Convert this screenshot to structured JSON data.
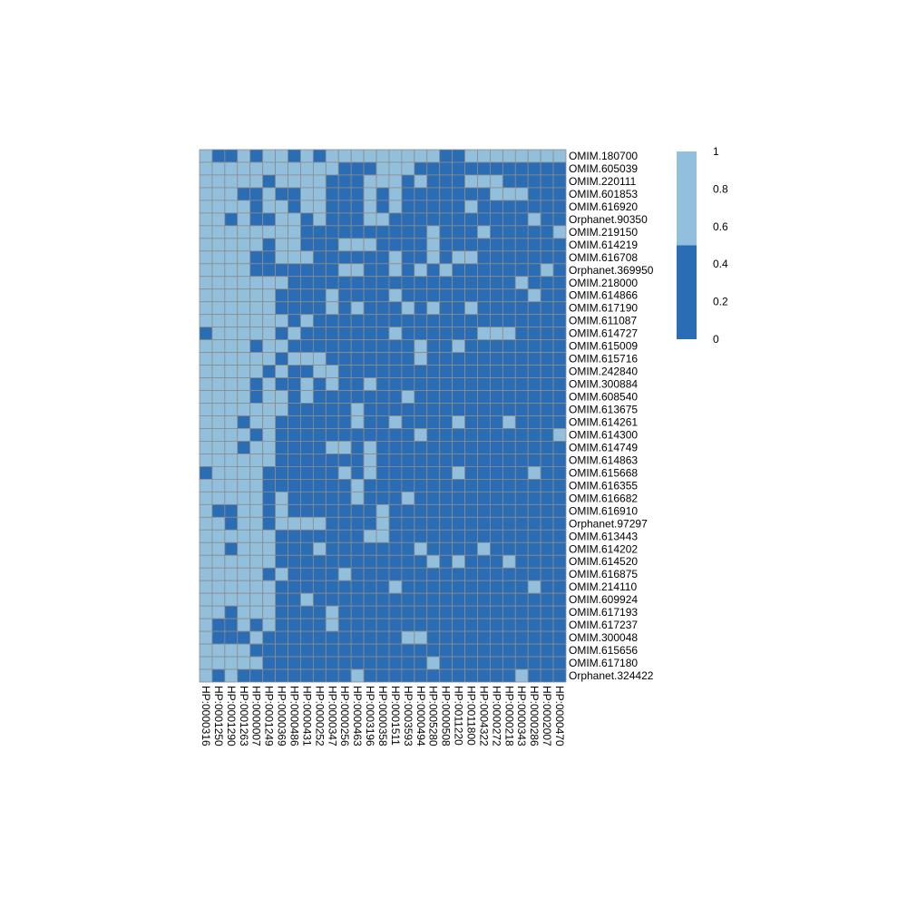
{
  "chart_data": {
    "type": "heatmap",
    "title": "",
    "xlabel": "",
    "ylabel": "",
    "grid": true,
    "legend_position": "right",
    "colors": {
      "high": "#92bfdb",
      "low": "#2a6db5",
      "border": "#8c8c8c"
    },
    "value_range": [
      0,
      1
    ],
    "colorbar": {
      "ticks": [
        {
          "value": 1,
          "label": "1"
        },
        {
          "value": 0.8,
          "label": "0.8"
        },
        {
          "value": 0.6,
          "label": "0.6"
        },
        {
          "value": 0.4,
          "label": "0.4"
        },
        {
          "value": 0.2,
          "label": "0.2"
        },
        {
          "value": 0,
          "label": "0"
        }
      ],
      "split": 0.5
    },
    "columns": [
      "HP:0000316",
      "HP:0001250",
      "HP:0001290",
      "HP:0001263",
      "HP:0000007",
      "HP:0001249",
      "HP:0000369",
      "HP:0000486",
      "HP:0000431",
      "HP:0000252",
      "HP:0000347",
      "HP:0000256",
      "HP:0000463",
      "HP:0003196",
      "HP:0000358",
      "HP:0001511",
      "HP:0003593",
      "HP:0000494",
      "HP:0005280",
      "HP:0000508",
      "HP:0011220",
      "HP:0011800",
      "HP:0004322",
      "HP:0000272",
      "HP:0000218",
      "HP:0000343",
      "HP:0000286",
      "HP:0002007",
      "HP:0000470"
    ],
    "rows": [
      "OMIM.180700",
      "OMIM.605039",
      "OMIM.220111",
      "OMIM.601853",
      "OMIM.616920",
      "Orphanet.90350",
      "OMIM.219150",
      "OMIM.614219",
      "OMIM.616708",
      "Orphanet.369950",
      "OMIM.218000",
      "OMIM.614866",
      "OMIM.617190",
      "OMIM.611087",
      "OMIM.614727",
      "OMIM.615009",
      "OMIM.615716",
      "OMIM.242840",
      "OMIM.300884",
      "OMIM.608540",
      "OMIM.613675",
      "OMIM.614261",
      "OMIM.614300",
      "OMIM.614749",
      "OMIM.614863",
      "OMIM.615668",
      "OMIM.616355",
      "OMIM.616682",
      "OMIM.616910",
      "Orphanet.97297",
      "OMIM.613443",
      "OMIM.614202",
      "OMIM.614520",
      "OMIM.616875",
      "OMIM.214110",
      "OMIM.609924",
      "OMIM.617193",
      "OMIM.617237",
      "OMIM.300048",
      "OMIM.615656",
      "OMIM.617180",
      "Orphanet.324422"
    ],
    "values": [
      [
        1,
        0,
        0,
        1,
        0,
        1,
        1,
        0,
        1,
        0,
        1,
        1,
        1,
        1,
        1,
        1,
        1,
        1,
        1,
        0,
        0,
        1,
        1,
        1,
        1,
        1,
        1,
        1,
        1
      ],
      [
        1,
        1,
        1,
        1,
        1,
        1,
        1,
        1,
        1,
        1,
        1,
        0,
        0,
        0,
        1,
        1,
        1,
        0,
        0,
        0,
        0,
        0,
        0,
        0,
        0,
        0,
        0,
        0,
        0
      ],
      [
        1,
        1,
        1,
        1,
        1,
        0,
        1,
        1,
        1,
        1,
        0,
        0,
        0,
        1,
        1,
        1,
        0,
        1,
        0,
        0,
        0,
        1,
        1,
        1,
        0,
        0,
        0,
        0,
        0
      ],
      [
        1,
        1,
        1,
        0,
        0,
        1,
        0,
        0,
        1,
        1,
        0,
        0,
        0,
        1,
        0,
        1,
        0,
        0,
        0,
        0,
        0,
        0,
        0,
        1,
        1,
        1,
        0,
        0,
        0
      ],
      [
        1,
        1,
        1,
        1,
        0,
        1,
        1,
        0,
        1,
        1,
        0,
        0,
        0,
        1,
        0,
        1,
        0,
        0,
        0,
        0,
        0,
        1,
        0,
        0,
        0,
        0,
        0,
        0,
        0
      ],
      [
        1,
        1,
        0,
        1,
        0,
        0,
        1,
        1,
        0,
        1,
        0,
        0,
        0,
        1,
        1,
        0,
        0,
        0,
        0,
        0,
        0,
        0,
        0,
        0,
        0,
        0,
        1,
        0,
        0
      ],
      [
        1,
        1,
        1,
        1,
        1,
        1,
        1,
        1,
        0,
        0,
        0,
        0,
        0,
        0,
        0,
        0,
        0,
        0,
        1,
        0,
        0,
        0,
        1,
        0,
        0,
        0,
        0,
        0,
        1
      ],
      [
        1,
        1,
        1,
        1,
        1,
        0,
        1,
        1,
        0,
        0,
        0,
        1,
        1,
        1,
        0,
        0,
        0,
        0,
        1,
        0,
        0,
        0,
        0,
        0,
        0,
        0,
        0,
        0,
        0
      ],
      [
        1,
        1,
        1,
        1,
        0,
        0,
        1,
        1,
        1,
        0,
        0,
        0,
        0,
        0,
        0,
        1,
        0,
        0,
        1,
        0,
        1,
        1,
        0,
        0,
        0,
        0,
        0,
        0,
        0
      ],
      [
        1,
        1,
        1,
        1,
        0,
        0,
        0,
        0,
        0,
        0,
        0,
        1,
        1,
        0,
        0,
        1,
        0,
        1,
        0,
        1,
        0,
        0,
        0,
        0,
        0,
        0,
        0,
        1,
        0
      ],
      [
        1,
        1,
        1,
        1,
        1,
        1,
        1,
        0,
        0,
        0,
        0,
        0,
        0,
        0,
        0,
        0,
        0,
        0,
        0,
        0,
        0,
        0,
        0,
        0,
        0,
        1,
        0,
        0,
        0
      ],
      [
        1,
        1,
        1,
        1,
        1,
        1,
        0,
        0,
        0,
        0,
        1,
        0,
        0,
        0,
        0,
        1,
        0,
        0,
        0,
        0,
        0,
        0,
        0,
        0,
        0,
        0,
        1,
        0,
        0
      ],
      [
        1,
        1,
        1,
        1,
        1,
        1,
        0,
        0,
        0,
        0,
        1,
        0,
        1,
        0,
        0,
        0,
        1,
        0,
        1,
        0,
        0,
        1,
        0,
        0,
        0,
        0,
        0,
        0,
        0
      ],
      [
        1,
        1,
        1,
        1,
        1,
        1,
        1,
        0,
        1,
        0,
        0,
        0,
        0,
        0,
        0,
        0,
        0,
        0,
        0,
        0,
        0,
        0,
        0,
        0,
        0,
        0,
        0,
        0,
        0
      ],
      [
        0,
        1,
        1,
        1,
        1,
        1,
        0,
        1,
        0,
        0,
        0,
        0,
        0,
        0,
        0,
        1,
        0,
        0,
        0,
        0,
        0,
        0,
        1,
        1,
        1,
        0,
        0,
        0,
        0
      ],
      [
        1,
        1,
        1,
        1,
        0,
        1,
        1,
        0,
        0,
        0,
        0,
        0,
        0,
        0,
        0,
        0,
        0,
        1,
        0,
        0,
        1,
        0,
        0,
        0,
        0,
        0,
        0,
        0,
        0
      ],
      [
        1,
        1,
        1,
        1,
        1,
        1,
        0,
        1,
        1,
        1,
        0,
        0,
        0,
        0,
        0,
        0,
        0,
        1,
        0,
        0,
        0,
        0,
        0,
        0,
        0,
        0,
        0,
        0,
        0
      ],
      [
        1,
        1,
        1,
        1,
        1,
        0,
        1,
        0,
        0,
        1,
        1,
        0,
        0,
        0,
        0,
        0,
        0,
        0,
        0,
        0,
        0,
        0,
        0,
        0,
        0,
        0,
        0,
        0,
        0
      ],
      [
        1,
        1,
        1,
        1,
        0,
        1,
        0,
        0,
        1,
        0,
        1,
        0,
        0,
        1,
        0,
        0,
        0,
        0,
        0,
        0,
        0,
        0,
        0,
        0,
        0,
        0,
        0,
        0,
        0
      ],
      [
        1,
        1,
        1,
        1,
        0,
        1,
        1,
        0,
        1,
        0,
        0,
        0,
        0,
        0,
        0,
        0,
        1,
        0,
        0,
        0,
        0,
        0,
        0,
        0,
        0,
        0,
        0,
        0,
        0
      ],
      [
        1,
        1,
        1,
        1,
        1,
        1,
        1,
        0,
        0,
        0,
        0,
        0,
        1,
        0,
        0,
        0,
        0,
        0,
        0,
        0,
        0,
        0,
        0,
        0,
        0,
        0,
        0,
        0,
        0
      ],
      [
        1,
        1,
        1,
        0,
        1,
        1,
        0,
        0,
        0,
        0,
        0,
        0,
        1,
        0,
        0,
        1,
        0,
        0,
        0,
        0,
        1,
        0,
        0,
        0,
        1,
        0,
        0,
        0,
        0
      ],
      [
        1,
        1,
        1,
        1,
        0,
        1,
        0,
        0,
        0,
        0,
        0,
        0,
        0,
        0,
        0,
        0,
        0,
        1,
        0,
        0,
        0,
        0,
        0,
        0,
        0,
        0,
        0,
        0,
        1
      ],
      [
        1,
        1,
        1,
        0,
        1,
        1,
        0,
        0,
        0,
        0,
        1,
        1,
        0,
        1,
        0,
        0,
        0,
        0,
        0,
        0,
        0,
        0,
        0,
        0,
        0,
        0,
        0,
        0,
        0
      ],
      [
        1,
        1,
        1,
        1,
        1,
        1,
        0,
        0,
        0,
        0,
        0,
        0,
        0,
        1,
        0,
        0,
        0,
        0,
        0,
        0,
        0,
        0,
        0,
        0,
        0,
        0,
        0,
        0,
        0
      ],
      [
        0,
        1,
        1,
        1,
        1,
        0,
        0,
        0,
        0,
        0,
        0,
        1,
        0,
        1,
        0,
        0,
        0,
        0,
        0,
        0,
        1,
        0,
        0,
        0,
        0,
        0,
        1,
        0,
        0
      ],
      [
        1,
        1,
        1,
        1,
        1,
        0,
        0,
        0,
        0,
        0,
        0,
        0,
        1,
        0,
        0,
        0,
        0,
        0,
        0,
        0,
        0,
        0,
        0,
        0,
        0,
        0,
        0,
        0,
        0
      ],
      [
        1,
        1,
        1,
        1,
        1,
        0,
        1,
        0,
        0,
        0,
        0,
        0,
        1,
        0,
        0,
        0,
        1,
        0,
        0,
        0,
        0,
        0,
        0,
        0,
        0,
        0,
        0,
        0,
        0
      ],
      [
        1,
        0,
        0,
        1,
        1,
        0,
        1,
        0,
        0,
        0,
        0,
        0,
        0,
        0,
        1,
        0,
        0,
        0,
        0,
        0,
        0,
        0,
        0,
        0,
        0,
        0,
        0,
        0,
        0
      ],
      [
        1,
        1,
        0,
        1,
        1,
        0,
        1,
        1,
        1,
        1,
        0,
        0,
        0,
        0,
        1,
        0,
        0,
        0,
        0,
        0,
        0,
        0,
        0,
        0,
        0,
        0,
        0,
        0,
        0
      ],
      [
        1,
        1,
        1,
        1,
        1,
        1,
        0,
        0,
        0,
        0,
        0,
        0,
        0,
        1,
        1,
        0,
        0,
        0,
        0,
        0,
        0,
        0,
        0,
        0,
        0,
        0,
        0,
        0,
        0
      ],
      [
        1,
        1,
        0,
        1,
        1,
        1,
        0,
        0,
        0,
        1,
        0,
        0,
        0,
        0,
        0,
        0,
        0,
        1,
        0,
        0,
        0,
        0,
        1,
        0,
        0,
        0,
        0,
        0,
        0
      ],
      [
        1,
        1,
        1,
        1,
        1,
        1,
        0,
        0,
        0,
        0,
        0,
        0,
        0,
        0,
        0,
        0,
        0,
        0,
        1,
        0,
        1,
        0,
        0,
        0,
        1,
        0,
        0,
        0,
        0
      ],
      [
        1,
        1,
        1,
        1,
        1,
        0,
        1,
        0,
        0,
        0,
        0,
        1,
        0,
        0,
        0,
        0,
        0,
        0,
        0,
        0,
        0,
        0,
        0,
        0,
        0,
        0,
        0,
        0,
        0
      ],
      [
        1,
        1,
        1,
        1,
        1,
        1,
        0,
        0,
        0,
        0,
        0,
        0,
        0,
        0,
        0,
        1,
        0,
        0,
        0,
        0,
        0,
        0,
        0,
        0,
        0,
        0,
        1,
        0,
        0
      ],
      [
        1,
        1,
        1,
        1,
        1,
        1,
        0,
        0,
        1,
        0,
        0,
        0,
        0,
        0,
        0,
        0,
        0,
        0,
        0,
        0,
        0,
        0,
        0,
        0,
        0,
        0,
        0,
        0,
        0
      ],
      [
        1,
        1,
        0,
        1,
        1,
        1,
        0,
        0,
        0,
        0,
        1,
        0,
        0,
        0,
        0,
        0,
        0,
        0,
        0,
        0,
        0,
        0,
        0,
        0,
        0,
        0,
        0,
        0,
        0
      ],
      [
        1,
        0,
        0,
        1,
        0,
        1,
        0,
        0,
        0,
        0,
        1,
        0,
        0,
        0,
        0,
        0,
        0,
        0,
        0,
        0,
        0,
        0,
        0,
        0,
        0,
        0,
        0,
        0,
        0
      ],
      [
        1,
        0,
        0,
        0,
        1,
        0,
        0,
        0,
        0,
        0,
        0,
        0,
        0,
        0,
        0,
        0,
        1,
        1,
        0,
        0,
        0,
        0,
        0,
        0,
        0,
        0,
        0,
        0,
        0
      ],
      [
        1,
        1,
        1,
        1,
        0,
        0,
        0,
        0,
        0,
        0,
        0,
        0,
        0,
        0,
        0,
        0,
        0,
        0,
        0,
        0,
        0,
        0,
        0,
        0,
        0,
        0,
        0,
        0,
        0
      ],
      [
        1,
        1,
        1,
        1,
        1,
        0,
        0,
        0,
        0,
        0,
        0,
        0,
        0,
        0,
        0,
        0,
        0,
        0,
        1,
        0,
        0,
        0,
        0,
        0,
        0,
        0,
        0,
        0,
        0
      ],
      [
        1,
        0,
        1,
        0,
        0,
        0,
        0,
        0,
        0,
        0,
        0,
        0,
        1,
        0,
        0,
        0,
        0,
        0,
        0,
        0,
        0,
        0,
        0,
        0,
        0,
        1,
        0,
        0,
        0
      ]
    ]
  }
}
